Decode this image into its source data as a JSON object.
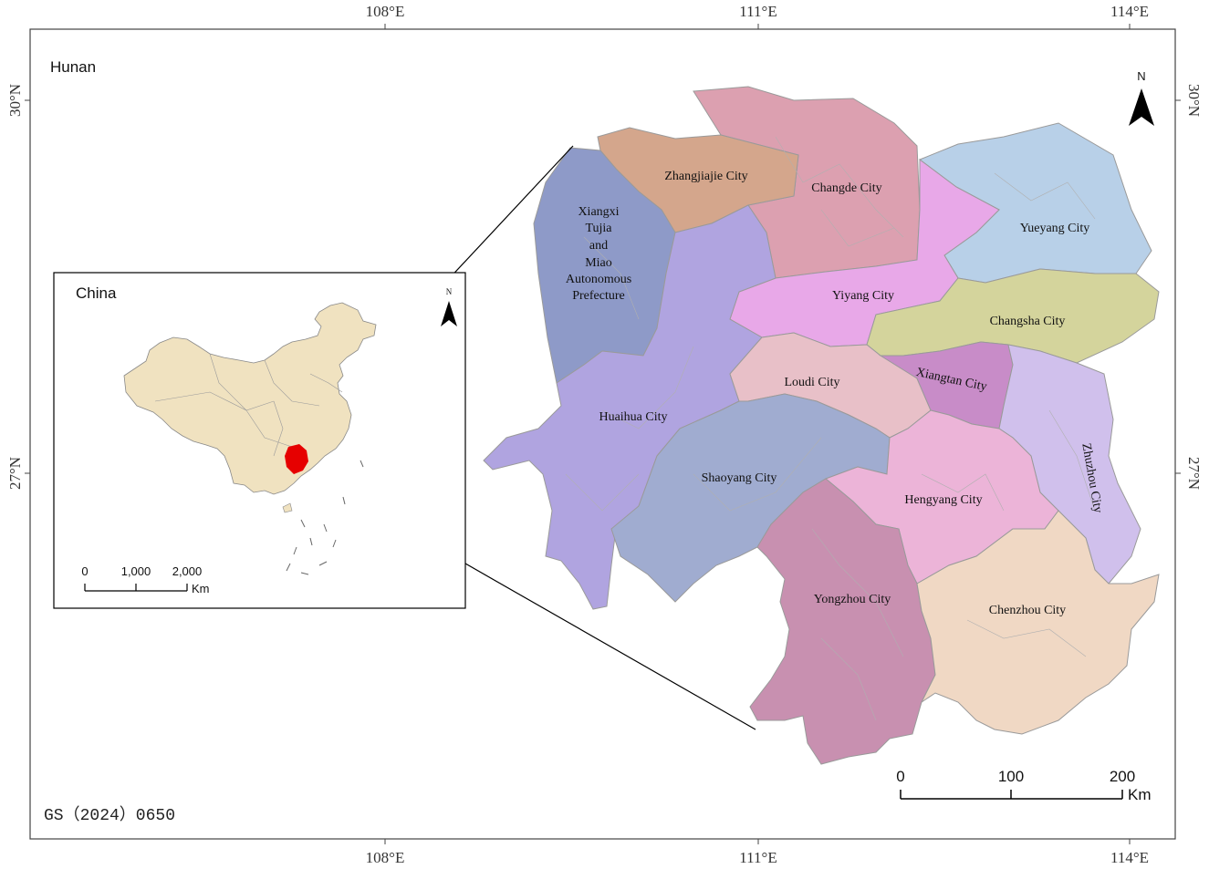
{
  "map": {
    "title": "Hunan",
    "approval_number": "GS（2024）0650",
    "graticule": {
      "top": [
        "108°E",
        "111°E",
        "114°E"
      ],
      "bottom": [
        "108°E",
        "111°E",
        "114°E"
      ],
      "left": [
        "30°N",
        "27°N"
      ],
      "right": [
        "30°N",
        "27°N"
      ]
    },
    "north_arrow": {
      "label": "N"
    },
    "scale_bar": {
      "ticks": [
        "0",
        "100",
        "200"
      ],
      "unit": "Km"
    },
    "cities": [
      {
        "name": "Zhangjiajie City",
        "color": "#d4a68c"
      },
      {
        "name": "Changde City",
        "color": "#dca0b0"
      },
      {
        "name": "Xiangxi Tujia and Miao Autonomous Prefecture",
        "lines": [
          "Xiangxi",
          "Tujia",
          "and",
          "Miao",
          "Autonomous",
          "Prefecture"
        ],
        "color": "#8e9ac8"
      },
      {
        "name": "Yueyang City",
        "color": "#b8d0e8"
      },
      {
        "name": "Yiyang City",
        "color": "#e8a8e8"
      },
      {
        "name": "Changsha City",
        "color": "#d4d49c"
      },
      {
        "name": "Huaihua City",
        "color": "#b0a4e0"
      },
      {
        "name": "Loudi City",
        "color": "#e8c0c8"
      },
      {
        "name": "Xiangtan City",
        "color": "#c88cc8"
      },
      {
        "name": "Zhuzhou City",
        "color": "#d0c0ec"
      },
      {
        "name": "Shaoyang City",
        "color": "#a0acd0"
      },
      {
        "name": "Hengyang City",
        "color": "#ecb4d8"
      },
      {
        "name": "Yongzhou City",
        "color": "#c890b0"
      },
      {
        "name": "Chenzhou City",
        "color": "#f0d8c4"
      }
    ]
  },
  "inset": {
    "title": "China",
    "fill_color": "#f0e2c0",
    "highlight_color": "#e60000",
    "north_arrow": {
      "label": "N"
    },
    "scale_bar": {
      "ticks": [
        "0",
        "1,000",
        "2,000"
      ],
      "unit": "Km"
    }
  }
}
